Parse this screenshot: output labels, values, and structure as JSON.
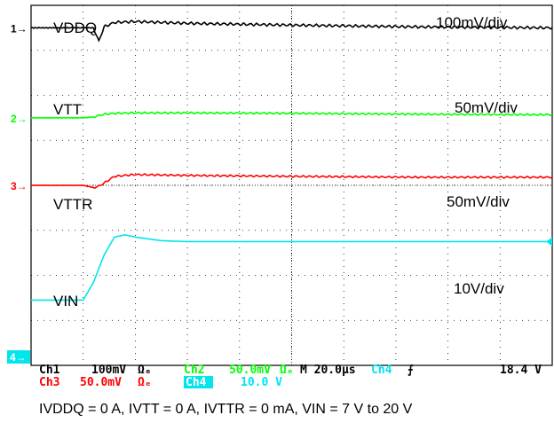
{
  "chart_data": {
    "type": "line",
    "title": "",
    "x_unit": "µs",
    "xlim": [
      0,
      200
    ],
    "divisions": {
      "x": 10,
      "y": 8
    },
    "grid": true,
    "channels": [
      {
        "id": "ch1",
        "marker": "1",
        "name": "VDDQ",
        "scale_text": "100mV/div",
        "color": "#000000",
        "marker_division_from_top": 0.5,
        "x": [
          0,
          20,
          24,
          26,
          28,
          32,
          40,
          60,
          100,
          150,
          200
        ],
        "offset": [
          0,
          0,
          0,
          -0.3,
          0.02,
          0.12,
          0.14,
          0.1,
          0.06,
          0.02,
          0.0
        ],
        "ripple": 0.03
      },
      {
        "id": "ch2",
        "marker": "2",
        "name": "VTT",
        "scale_text": "50mV/div",
        "color": "#00ff00",
        "marker_division_from_top": 2.5,
        "x": [
          0,
          20,
          24,
          26,
          28,
          32,
          40,
          60,
          100,
          150,
          200
        ],
        "offset": [
          0,
          0,
          0.02,
          0.05,
          0.08,
          0.1,
          0.11,
          0.11,
          0.1,
          0.08,
          0.07
        ],
        "ripple": 0.02
      },
      {
        "id": "ch3",
        "marker": "3",
        "name": "VTTR",
        "scale_text": "50mV/div",
        "color": "#ff0000",
        "marker_division_from_top": 4.0,
        "x": [
          0,
          20,
          24,
          26,
          28,
          32,
          40,
          60,
          100,
          150,
          200
        ],
        "offset": [
          0,
          0,
          -0.05,
          -0.02,
          0.05,
          0.2,
          0.24,
          0.22,
          0.2,
          0.18,
          0.18
        ],
        "ripple": 0.02
      },
      {
        "id": "ch4",
        "marker": "4",
        "name": "VIN",
        "scale_text": "10V/div",
        "color": "#00e5ee",
        "marker_division_from_top": 7.25,
        "x": [
          0,
          20,
          24,
          28,
          32,
          36,
          40,
          50,
          60,
          80,
          100,
          200
        ],
        "offset": [
          0.7,
          0.7,
          1.1,
          1.7,
          2.1,
          2.15,
          2.1,
          2.02,
          2.0,
          2.0,
          2.0,
          2.0
        ],
        "ripple": 0
      }
    ]
  },
  "status": {
    "ch1_name": "Ch1",
    "ch1_scale": "100mV",
    "ch2_name": "Ch2",
    "ch2_scale": "50.0mV",
    "ch3_name": "Ch3",
    "ch3_scale": "50.0mV",
    "ch4_name": "Ch4",
    "ch4_scale": "10.0 V",
    "bw_mark": "Ωₑ",
    "timebase": "M 20.0µs",
    "trigger_channel": "Ch4",
    "trigger_symbol": "⨍",
    "trigger_level": "18.4 V"
  },
  "caption": "IVDDQ = 0 A, IVTT = 0 A, IVTTR = 0 mA, VIN = 7 V to 20 V"
}
